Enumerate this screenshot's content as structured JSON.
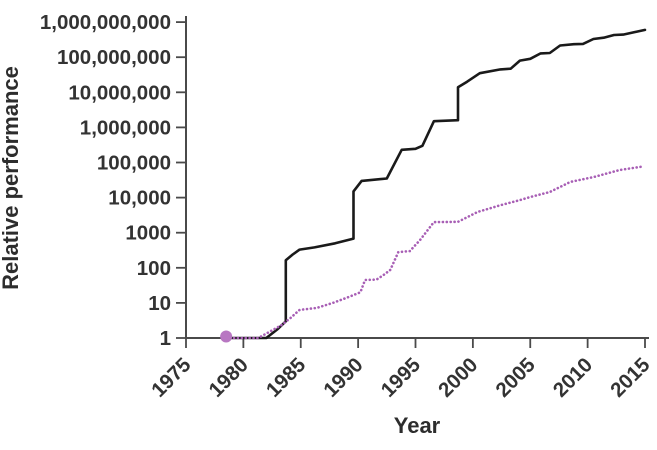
{
  "chart_data": {
    "type": "line",
    "title": "",
    "xlabel": "Year",
    "ylabel": "Relative performance",
    "y_scale": "log",
    "x_range": [
      1975,
      2015
    ],
    "ylim": [
      1,
      1000000000
    ],
    "grid": false,
    "legend": "none",
    "x_ticks": [
      1975,
      1980,
      1985,
      1990,
      1995,
      2000,
      2005,
      2010,
      2015
    ],
    "y_ticks": [
      {
        "label": "1,000,000,000",
        "value": 1000000000
      },
      {
        "label": "100,000,000",
        "value": 100000000
      },
      {
        "label": "10,000,000",
        "value": 10000000
      },
      {
        "label": "1,000,000",
        "value": 1000000
      },
      {
        "label": "100,000",
        "value": 100000
      },
      {
        "label": "10,000",
        "value": 10000
      },
      {
        "label": "1000",
        "value": 1000
      },
      {
        "label": "100",
        "value": 100
      },
      {
        "label": "10",
        "value": 10
      },
      {
        "label": "1",
        "value": 1
      }
    ],
    "colors": {
      "axis": "#4a4a4a",
      "tick_text": "#333333",
      "black_series": "#1a1a1a",
      "purple_series": "#a85fb5",
      "start_dot": "#b877c2"
    },
    "series": [
      {
        "name": "black solid line",
        "style": "solid",
        "color": "#1a1a1a",
        "points": [
          [
            1978.5,
            1
          ],
          [
            1982,
            1
          ],
          [
            1983,
            1.8
          ],
          [
            1983.7,
            3
          ],
          [
            1983.7,
            165
          ],
          [
            1984.3,
            240
          ],
          [
            1984.9,
            330
          ],
          [
            1986.2,
            380
          ],
          [
            1988,
            500
          ],
          [
            1989.6,
            680
          ],
          [
            1989.6,
            15000
          ],
          [
            1990.3,
            30000
          ],
          [
            1992.5,
            35000
          ],
          [
            1993.8,
            230000
          ],
          [
            1995,
            245000
          ],
          [
            1995.6,
            300000
          ],
          [
            1996.6,
            1500000
          ],
          [
            1998.7,
            1600000
          ],
          [
            1998.7,
            14000000
          ],
          [
            1999.5,
            20000000
          ],
          [
            2000.6,
            35000000
          ],
          [
            2002.4,
            45000000
          ],
          [
            2003.3,
            47000000
          ],
          [
            2004.1,
            80000000
          ],
          [
            2005,
            90000000
          ],
          [
            2005.9,
            128000000
          ],
          [
            2006.7,
            132000000
          ],
          [
            2007.6,
            215000000
          ],
          [
            2008.8,
            235000000
          ],
          [
            2009.6,
            240000000
          ],
          [
            2010.5,
            330000000
          ],
          [
            2011.4,
            360000000
          ],
          [
            2012.3,
            430000000
          ],
          [
            2013.1,
            440000000
          ],
          [
            2015,
            600000000
          ]
        ]
      },
      {
        "name": "purple dotted line",
        "style": "dotted",
        "color": "#a85fb5",
        "start_marker": {
          "year": 1978.5,
          "value": 1,
          "color": "#b877c2"
        },
        "points": [
          [
            1978.5,
            1
          ],
          [
            1981.3,
            1
          ],
          [
            1982.1,
            1.4
          ],
          [
            1983.3,
            2.3
          ],
          [
            1984.1,
            3.7
          ],
          [
            1984.9,
            6.3
          ],
          [
            1986.4,
            7.2
          ],
          [
            1987.8,
            10
          ],
          [
            1989,
            14
          ],
          [
            1990.2,
            20
          ],
          [
            1990.6,
            45
          ],
          [
            1991.6,
            46
          ],
          [
            1992.2,
            62
          ],
          [
            1992.8,
            87
          ],
          [
            1993.5,
            280
          ],
          [
            1994.5,
            300
          ],
          [
            1995.4,
            620
          ],
          [
            1996.6,
            2000
          ],
          [
            1998.7,
            2050
          ],
          [
            2000.4,
            3900
          ],
          [
            2002.5,
            6200
          ],
          [
            2004.1,
            8500
          ],
          [
            2005,
            10400
          ],
          [
            2006.7,
            14400
          ],
          [
            2008.5,
            28000
          ],
          [
            2010.5,
            38500
          ],
          [
            2012.8,
            61000
          ],
          [
            2014.7,
            76000
          ]
        ]
      }
    ]
  }
}
